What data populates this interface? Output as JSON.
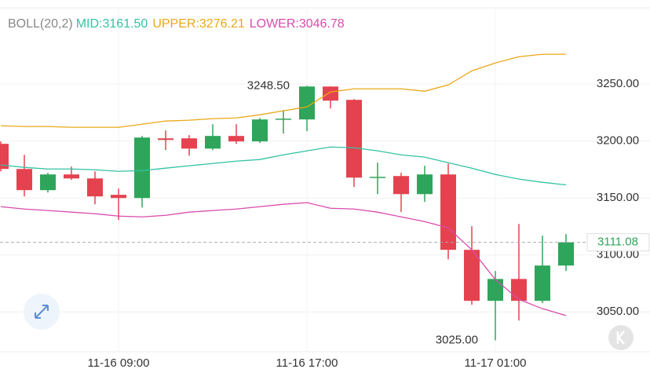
{
  "chart_data": {
    "type": "candlestick",
    "indicator": "BOLL(20,2)",
    "categories": [
      null,
      null,
      null,
      null,
      null,
      "11-16 09:00",
      null,
      null,
      null,
      null,
      null,
      null,
      null,
      "11-16 17:00",
      null,
      null,
      null,
      null,
      null,
      null,
      null,
      "11-17 01:00",
      null,
      null,
      null
    ],
    "open": [
      3197.6,
      3175.5,
      3156.9,
      3170.7,
      3167.2,
      3152.8,
      3150.0,
      3202.4,
      3202.4,
      3193.4,
      3204.5,
      3199.7,
      3219.0,
      3219.0,
      3247.9,
      3236.2,
      3167.9,
      3169.3,
      3153.4,
      3170.7,
      3104.5,
      3059.7,
      3078.9,
      3059.7,
      3090.7
    ],
    "high": [
      3199.7,
      3187.9,
      3172.1,
      3177.6,
      3173.4,
      3158.3,
      3204.5,
      3209.3,
      3205.2,
      3214.8,
      3214.8,
      3220.3,
      3227.2,
      3248.5,
      3248.0,
      3236.9,
      3181.0,
      3172.1,
      3178.3,
      3180.3,
      3125.2,
      3085.9,
      3127.2,
      3116.9,
      3118.3
    ],
    "low": [
      3173.4,
      3151.4,
      3154.8,
      3165.9,
      3144.5,
      3130.7,
      3141.7,
      3192.1,
      3187.2,
      3192.1,
      3197.6,
      3198.3,
      3206.6,
      3208.6,
      3228.6,
      3159.7,
      3153.4,
      3137.6,
      3146.6,
      3096.2,
      3056.2,
      3025.0,
      3042.4,
      3057.6,
      3085.9
    ],
    "close": [
      3175.5,
      3156.9,
      3170.7,
      3167.2,
      3151.4,
      3150.0,
      3203.1,
      3201.0,
      3193.4,
      3204.5,
      3199.7,
      3219.0,
      3219.7,
      3247.9,
      3235.5,
      3167.9,
      3168.6,
      3153.4,
      3170.7,
      3104.5,
      3059.7,
      3078.9,
      3059.7,
      3090.7,
      3111.08
    ],
    "up_color": "#2ea55a",
    "down_color": "#e5424f",
    "series": [
      {
        "name": "MID:3161.50",
        "color": "#33c2a4",
        "values": [
          3179.0,
          3176.9,
          3175.5,
          3175.5,
          3174.8,
          3173.4,
          3174.1,
          3176.2,
          3178.3,
          3180.3,
          3182.4,
          3183.8,
          3187.9,
          3191.4,
          3194.8,
          3194.1,
          3191.4,
          3187.9,
          3185.9,
          3181.0,
          3176.2,
          3170.7,
          3166.6,
          3163.8,
          3161.5
        ]
      },
      {
        "name": "UPPER:3276.21",
        "color": "#e9a817",
        "values": [
          3213.4,
          3212.8,
          3212.8,
          3212.1,
          3212.1,
          3212.1,
          3214.8,
          3217.6,
          3218.3,
          3219.7,
          3220.3,
          3223.1,
          3226.6,
          3230.0,
          3243.1,
          3245.9,
          3245.9,
          3245.9,
          3243.8,
          3249.3,
          3261.7,
          3268.6,
          3274.1,
          3276.21,
          3276.21
        ]
      },
      {
        "name": "LOWER:3046.78",
        "color": "#d94bad",
        "values": [
          3142.4,
          3140.3,
          3139.0,
          3137.6,
          3136.2,
          3134.1,
          3133.4,
          3134.8,
          3137.6,
          3139.0,
          3140.3,
          3142.4,
          3144.5,
          3145.9,
          3141.0,
          3140.3,
          3137.6,
          3133.4,
          3129.3,
          3123.8,
          3104.5,
          3078.3,
          3061.0,
          3052.8,
          3046.78
        ]
      }
    ],
    "ylim": [
      3015,
      3317
    ],
    "yticks": [
      {
        "value": 3050,
        "label": "3050.00"
      },
      {
        "value": 3100,
        "label": "3100.00"
      },
      {
        "value": 3150,
        "label": "3150.00"
      },
      {
        "value": 3200,
        "label": "3200.00"
      },
      {
        "value": 3250,
        "label": "3250.00"
      }
    ],
    "annotations": [
      {
        "value": 3248.5,
        "label": "3248.50"
      },
      {
        "value": 3025.0,
        "label": "3025.00"
      }
    ],
    "last_price": {
      "value": 3111.08,
      "label": "3111.08"
    },
    "grid": true
  }
}
